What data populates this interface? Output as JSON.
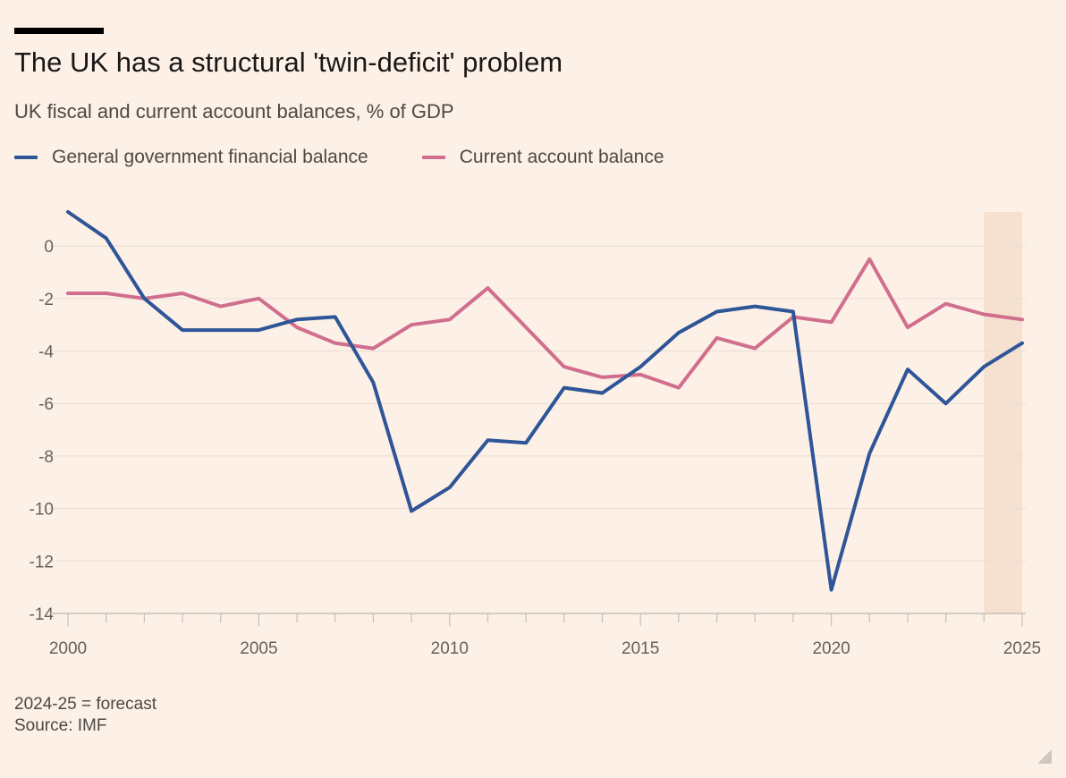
{
  "header": {
    "title": "The UK has a structural 'twin-deficit' problem",
    "subtitle": "UK fiscal and current account balances, % of GDP"
  },
  "legend": {
    "items": [
      {
        "label": "General government financial balance",
        "color": "#2E5597"
      },
      {
        "label": "Current account balance",
        "color": "#D06E8E"
      }
    ]
  },
  "footer": {
    "note": "2024-25 = forecast",
    "source": "Source: IMF"
  },
  "chart_data": {
    "type": "line",
    "title": "The UK has a structural 'twin-deficit' problem",
    "subtitle": "UK fiscal and current account balances, % of GDP",
    "xlabel": "",
    "ylabel": "",
    "x": [
      2000,
      2001,
      2002,
      2003,
      2004,
      2005,
      2006,
      2007,
      2008,
      2009,
      2010,
      2011,
      2012,
      2013,
      2014,
      2015,
      2016,
      2017,
      2018,
      2019,
      2020,
      2021,
      2022,
      2023,
      2024,
      2025
    ],
    "xlim": [
      2000,
      2025
    ],
    "ylim": [
      -14,
      1.3
    ],
    "x_ticks": [
      2000,
      2005,
      2010,
      2015,
      2020,
      2025
    ],
    "y_ticks": [
      0,
      -2,
      -4,
      -6,
      -8,
      -10,
      -12,
      -14
    ],
    "forecast_range": [
      2024,
      2025
    ],
    "grid": true,
    "legend_position": "top-left",
    "series": [
      {
        "name": "General government financial balance",
        "color": "#2E5597",
        "values": [
          1.3,
          0.3,
          -2.0,
          -3.2,
          -3.2,
          -3.2,
          -2.8,
          -2.7,
          -5.2,
          -10.1,
          -9.2,
          -7.4,
          -7.5,
          -5.4,
          -5.6,
          -4.6,
          -3.3,
          -2.5,
          -2.3,
          -2.5,
          -13.1,
          -7.9,
          -4.7,
          -6.0,
          -4.6,
          -3.7
        ]
      },
      {
        "name": "Current account balance",
        "color": "#D06E8E",
        "values": [
          -1.8,
          -1.8,
          -2.0,
          -1.8,
          -2.3,
          -2.0,
          -3.1,
          -3.7,
          -3.9,
          -3.0,
          -2.8,
          -1.6,
          -3.1,
          -4.6,
          -5.0,
          -4.9,
          -5.4,
          -3.5,
          -3.9,
          -2.7,
          -2.9,
          -0.5,
          -3.1,
          -2.2,
          -2.6,
          -2.8
        ]
      }
    ]
  }
}
